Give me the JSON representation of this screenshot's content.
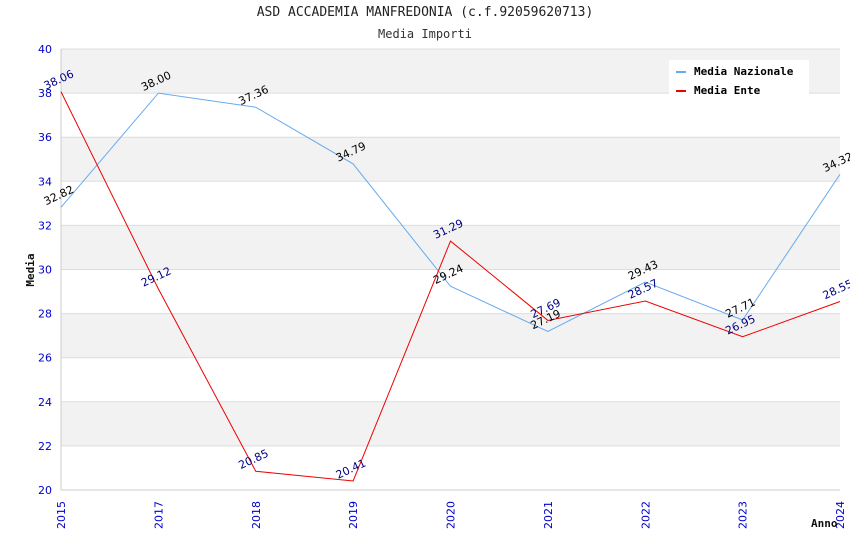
{
  "title": "ASD ACCADEMIA MANFREDONIA (c.f.92059620713)",
  "subtitle": "Media Importi",
  "chart_data": {
    "type": "line",
    "categories": [
      "2015",
      "2017",
      "2018",
      "2019",
      "2020",
      "2021",
      "2022",
      "2023",
      "2024"
    ],
    "xlabel": "Anno",
    "ylabel": "Media",
    "ylim": [
      20,
      40
    ],
    "yticks": [
      20,
      22,
      24,
      26,
      28,
      30,
      32,
      34,
      36,
      38,
      40
    ],
    "grid": true,
    "legend_position": "top-right",
    "series": [
      {
        "name": "Media Nazionale",
        "color": "#66aaee",
        "label_color": "#000000",
        "values": [
          32.82,
          38.0,
          37.36,
          34.79,
          29.24,
          27.19,
          29.43,
          27.71,
          34.32
        ],
        "labels": [
          "32.82",
          "38.00",
          "37.36",
          "34.79",
          "29.24",
          "27.19",
          "29.43",
          "27.71",
          "34.32"
        ]
      },
      {
        "name": "Media Ente",
        "color": "#ee0000",
        "label_color": "#000080",
        "values": [
          38.06,
          29.12,
          20.85,
          20.41,
          31.29,
          27.69,
          28.57,
          26.95,
          28.55
        ],
        "labels": [
          "38.06",
          "29.12",
          "20.85",
          "20.41",
          "31.29",
          "27.69",
          "28.57",
          "26.95",
          "28.55"
        ]
      }
    ]
  }
}
